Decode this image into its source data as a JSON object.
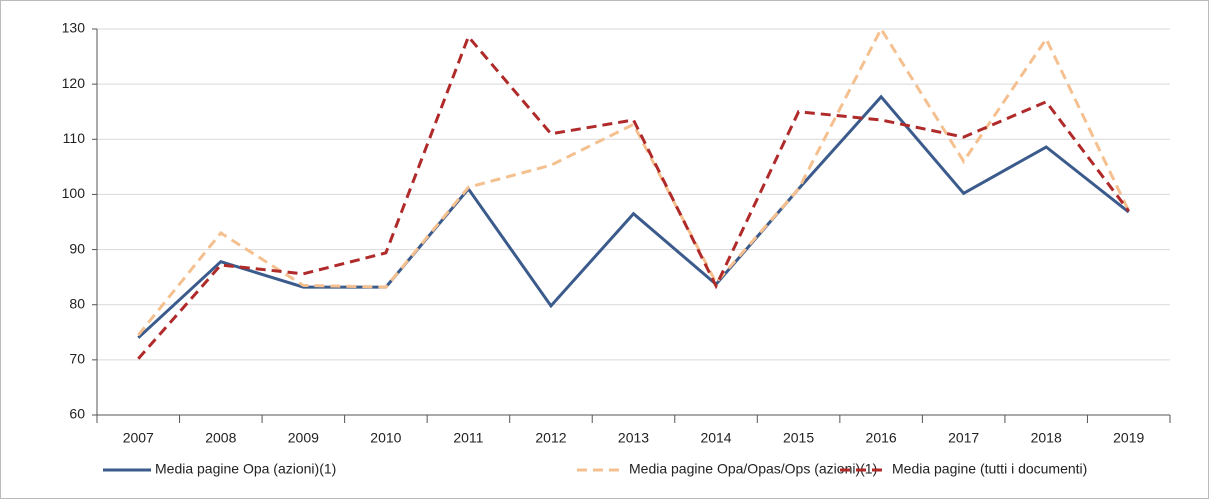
{
  "chart_data": {
    "type": "line",
    "categories": [
      "2007",
      "2008",
      "2009",
      "2010",
      "2011",
      "2012",
      "2013",
      "2014",
      "2015",
      "2016",
      "2017",
      "2018",
      "2019"
    ],
    "series": [
      {
        "name": "Media pagine Opa (azioni)(1)",
        "color": "#3b5b8c",
        "dash": "solid",
        "values": [
          74,
          87.8,
          83.2,
          83.2,
          101,
          79.8,
          96.5,
          83.7,
          101,
          117.7,
          100.2,
          108.6,
          96.8
        ]
      },
      {
        "name": "Media pagine Opa/Opas/Ops (azioni)(1)",
        "color": "#f5c08f",
        "dash": "dashed",
        "values": [
          74.5,
          93,
          83.5,
          83.2,
          101.3,
          105.3,
          112.7,
          84,
          101,
          130,
          106,
          128.2,
          97
        ]
      },
      {
        "name": "Media pagine (tutti i documenti)",
        "color": "#b02a2a",
        "dash": "dashed",
        "values": [
          70.2,
          87.2,
          85.6,
          89.4,
          128.6,
          111,
          113.5,
          83.4,
          115,
          113.5,
          110.4,
          116.8,
          97
        ]
      }
    ],
    "ylim": [
      60,
      130
    ],
    "yticks": [
      60,
      70,
      80,
      90,
      100,
      110,
      120,
      130
    ],
    "grid": true,
    "legend": "bottom"
  }
}
